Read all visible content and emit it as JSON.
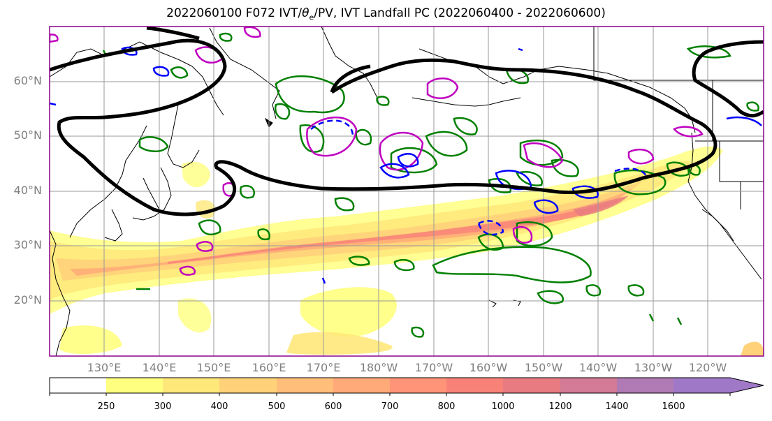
{
  "title_main": "2022060100 F072 IVT/",
  "title_theta": "θ",
  "title_sub": "e",
  "title_rest": "/PV, IVT Landfall PC (2022060400 - 2022060600)",
  "lat_labels": [
    "60°N",
    "50°N",
    "40°N",
    "30°N",
    "20°N"
  ],
  "lon_labels": [
    "130°E",
    "140°E",
    "150°E",
    "160°E",
    "170°E",
    "180°W",
    "170°W",
    "160°W",
    "150°W",
    "140°W",
    "130°W",
    "120°W"
  ],
  "colorbar": {
    "ticks": [
      "250",
      "300",
      "400",
      "500",
      "600",
      "700",
      "800",
      "1000",
      "1200",
      "1400",
      "1600"
    ],
    "colors": [
      "#ffffff",
      "#ffff80",
      "#ffe87a",
      "#ffd27a",
      "#ffbe7a",
      "#ffaa78",
      "#ff9478",
      "#f88278",
      "#e87a82",
      "#d27a96",
      "#b07ab4",
      "#a078c8"
    ],
    "extend": "max"
  },
  "colors": {
    "ivt_line": "#000000",
    "theta_e": "#008000",
    "pv_positive": "#0000ff",
    "pv_anomaly": "#c000c0",
    "grid": "#999999",
    "frame": "#8b008b"
  }
}
